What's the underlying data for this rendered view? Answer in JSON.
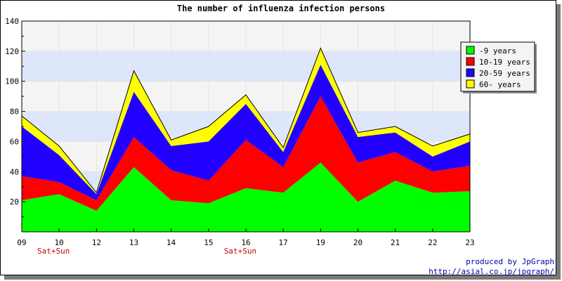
{
  "chart_data": {
    "type": "area",
    "stacked": true,
    "title": "The number of influenza infection persons",
    "x": [
      "09",
      "10",
      "12",
      "13",
      "14",
      "15",
      "16",
      "17",
      "19",
      "20",
      "21",
      "22",
      "23"
    ],
    "x_notes": [
      {
        "x": "10",
        "text": "Sat+Sun"
      },
      {
        "x": "16",
        "text": "Sat+Sun"
      }
    ],
    "ylim": [
      0,
      140
    ],
    "yticks": [
      20,
      40,
      60,
      80,
      100,
      120,
      140
    ],
    "grid": true,
    "band_colors": [
      "#f4f4f4",
      "#dde6fb"
    ],
    "legend_position": "top-right",
    "series": [
      {
        "name": "-9 years",
        "color": "#00ff00",
        "values": [
          21,
          25,
          14,
          43,
          21,
          19,
          29,
          26,
          46,
          20,
          34,
          26,
          27
        ]
      },
      {
        "name": "10-19 years",
        "color": "#ff0000",
        "values": [
          16,
          8,
          7,
          20,
          20,
          15,
          32,
          17,
          44,
          26,
          19,
          14,
          17
        ]
      },
      {
        "name": "20-59 years",
        "color": "#2200ff",
        "values": [
          33,
          18,
          4,
          30,
          16,
          26,
          24,
          10,
          21,
          17,
          13,
          10,
          16
        ]
      },
      {
        "name": "60- years",
        "color": "#ffff00",
        "values": [
          7,
          6,
          1,
          14,
          4,
          10,
          6,
          3,
          11,
          3,
          4,
          7,
          5
        ]
      }
    ]
  },
  "credits": {
    "line1": "produced by JpGraph",
    "line2": "http://asial.co.jp/jpgraph/"
  }
}
